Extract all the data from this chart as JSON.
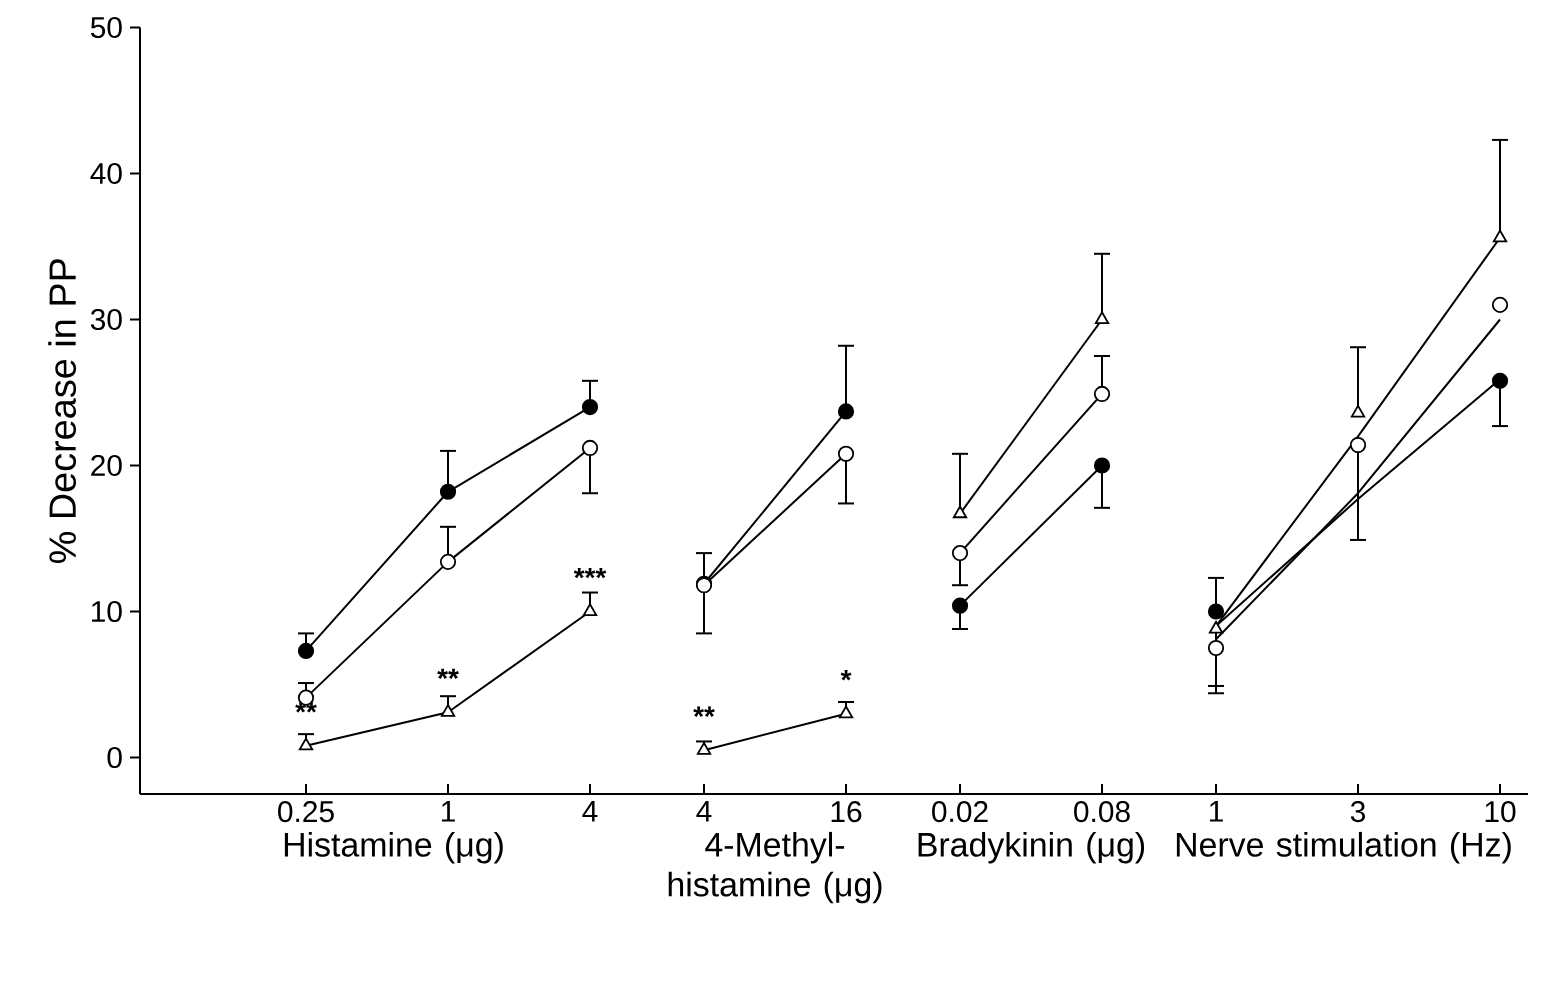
{
  "chart_data": [
    {
      "type": "line",
      "categories": [
        "0.25",
        "1",
        "4"
      ],
      "xlabel": "Histamine (μg)",
      "ylabel": "% Decrease in PP",
      "ylim": [
        -2.5,
        50
      ],
      "yticks": [
        0,
        10,
        20,
        30,
        40,
        50
      ],
      "series": [
        {
          "color": "#000000",
          "marker": "circle",
          "values": [
            7.3,
            18.2,
            24.0
          ],
          "errors": [
            [
              7.3,
              8.5
            ],
            [
              18.2,
              21.0
            ],
            [
              24.0,
              25.8
            ]
          ]
        },
        {
          "color": "#ffffff",
          "marker": "circle",
          "values": [
            4.1,
            13.4,
            21.2
          ],
          "errors": [
            [
              4.1,
              5.1
            ],
            [
              13.4,
              15.8
            ],
            [
              18.1,
              21.2
            ]
          ]
        },
        {
          "color": "#ffffff",
          "marker": "triangle",
          "values": [
            0.8,
            3.1,
            10.0
          ],
          "errors": [
            [
              0.8,
              1.6
            ],
            [
              3.1,
              4.2
            ],
            [
              10.0,
              11.3
            ]
          ]
        }
      ],
      "annotations": [
        {
          "text": "**",
          "x": "0.25",
          "y": 0.8
        },
        {
          "text": "**",
          "x": "1",
          "y": 3.1
        },
        {
          "text": "***",
          "x": "4",
          "y": 10.0
        }
      ]
    },
    {
      "type": "line",
      "categories": [
        "4",
        "16"
      ],
      "xlabel": "4-Methyl-histamine (μg)",
      "ylim": [
        -2.5,
        50
      ],
      "tick_labels": "x",
      "series": [
        {
          "color": "#000000",
          "marker": "circle",
          "values": [
            11.9,
            23.7
          ],
          "errors": [
            [
              11.9,
              14.0
            ],
            [
              23.7,
              28.2
            ]
          ]
        },
        {
          "color": "#ffffff",
          "marker": "circle",
          "values": [
            11.8,
            20.8
          ],
          "errors": [
            [
              8.5,
              11.8
            ],
            [
              17.4,
              20.8
            ]
          ]
        },
        {
          "color": "#ffffff",
          "marker": "triangle",
          "values": [
            0.5,
            3.0
          ],
          "errors": [
            [
              0.5,
              1.1
            ],
            [
              3.0,
              3.8
            ]
          ]
        }
      ],
      "annotations": [
        {
          "text": "**",
          "x": "4",
          "y": 0.5
        },
        {
          "text": "*",
          "x": "16",
          "y": 3.0
        }
      ]
    },
    {
      "type": "line",
      "categories": [
        "0.02",
        "0.08"
      ],
      "xlabel": "Bradykinin (μg)",
      "ylim": [
        -2.5,
        50
      ],
      "tick_labels": "x",
      "series": [
        {
          "color": "#000000",
          "marker": "circle",
          "values": [
            10.4,
            20.0
          ],
          "errors": [
            [
              8.8,
              10.4
            ],
            [
              17.1,
              20.0
            ]
          ]
        },
        {
          "color": "#ffffff",
          "marker": "circle",
          "values": [
            14.0,
            24.9
          ],
          "errors": [
            [
              11.8,
              14.0
            ],
            [
              24.9,
              27.5
            ]
          ]
        },
        {
          "color": "#ffffff",
          "marker": "triangle",
          "values": [
            16.7,
            30.0
          ],
          "errors": [
            [
              16.7,
              20.8
            ],
            [
              30.0,
              34.5
            ]
          ]
        }
      ]
    },
    {
      "type": "line",
      "categories": [
        "1",
        "3",
        "10"
      ],
      "xlabel": "Nerve stimulation (Hz)",
      "ylim": [
        -2.5,
        50
      ],
      "tick_labels": "x",
      "series": [
        {
          "type": "line",
          "color": "#000000",
          "marker": "none",
          "values": [
            9.0,
            17.7,
            25.9
          ]
        },
        {
          "type": "line",
          "color": "#000000",
          "marker": "none",
          "values": [
            8.1,
            18.1,
            30.0
          ]
        },
        {
          "type": "line",
          "color": "#000000",
          "marker": "none",
          "values": [
            9.0,
            22.0,
            35.6
          ]
        },
        {
          "type": "scatter",
          "color": "#000000",
          "marker": "circle",
          "values": [
            10.0,
            null,
            25.8
          ],
          "errors": [
            [
              10.0,
              12.3
            ],
            null,
            [
              22.7,
              25.8
            ]
          ]
        },
        {
          "type": "scatter",
          "color": "#ffffff",
          "marker": "circle",
          "values": [
            7.5,
            21.4,
            31.0
          ],
          "errors": [
            [
              4.9,
              7.5
            ],
            [
              14.9,
              21.4
            ],
            null
          ]
        },
        {
          "type": "scatter",
          "color": "#ffffff",
          "marker": "triangle",
          "values": [
            8.8,
            23.6,
            35.6
          ],
          "errors": [
            [
              4.4,
              8.8
            ],
            [
              23.6,
              28.1
            ],
            [
              35.6,
              42.3
            ]
          ]
        }
      ]
    }
  ]
}
